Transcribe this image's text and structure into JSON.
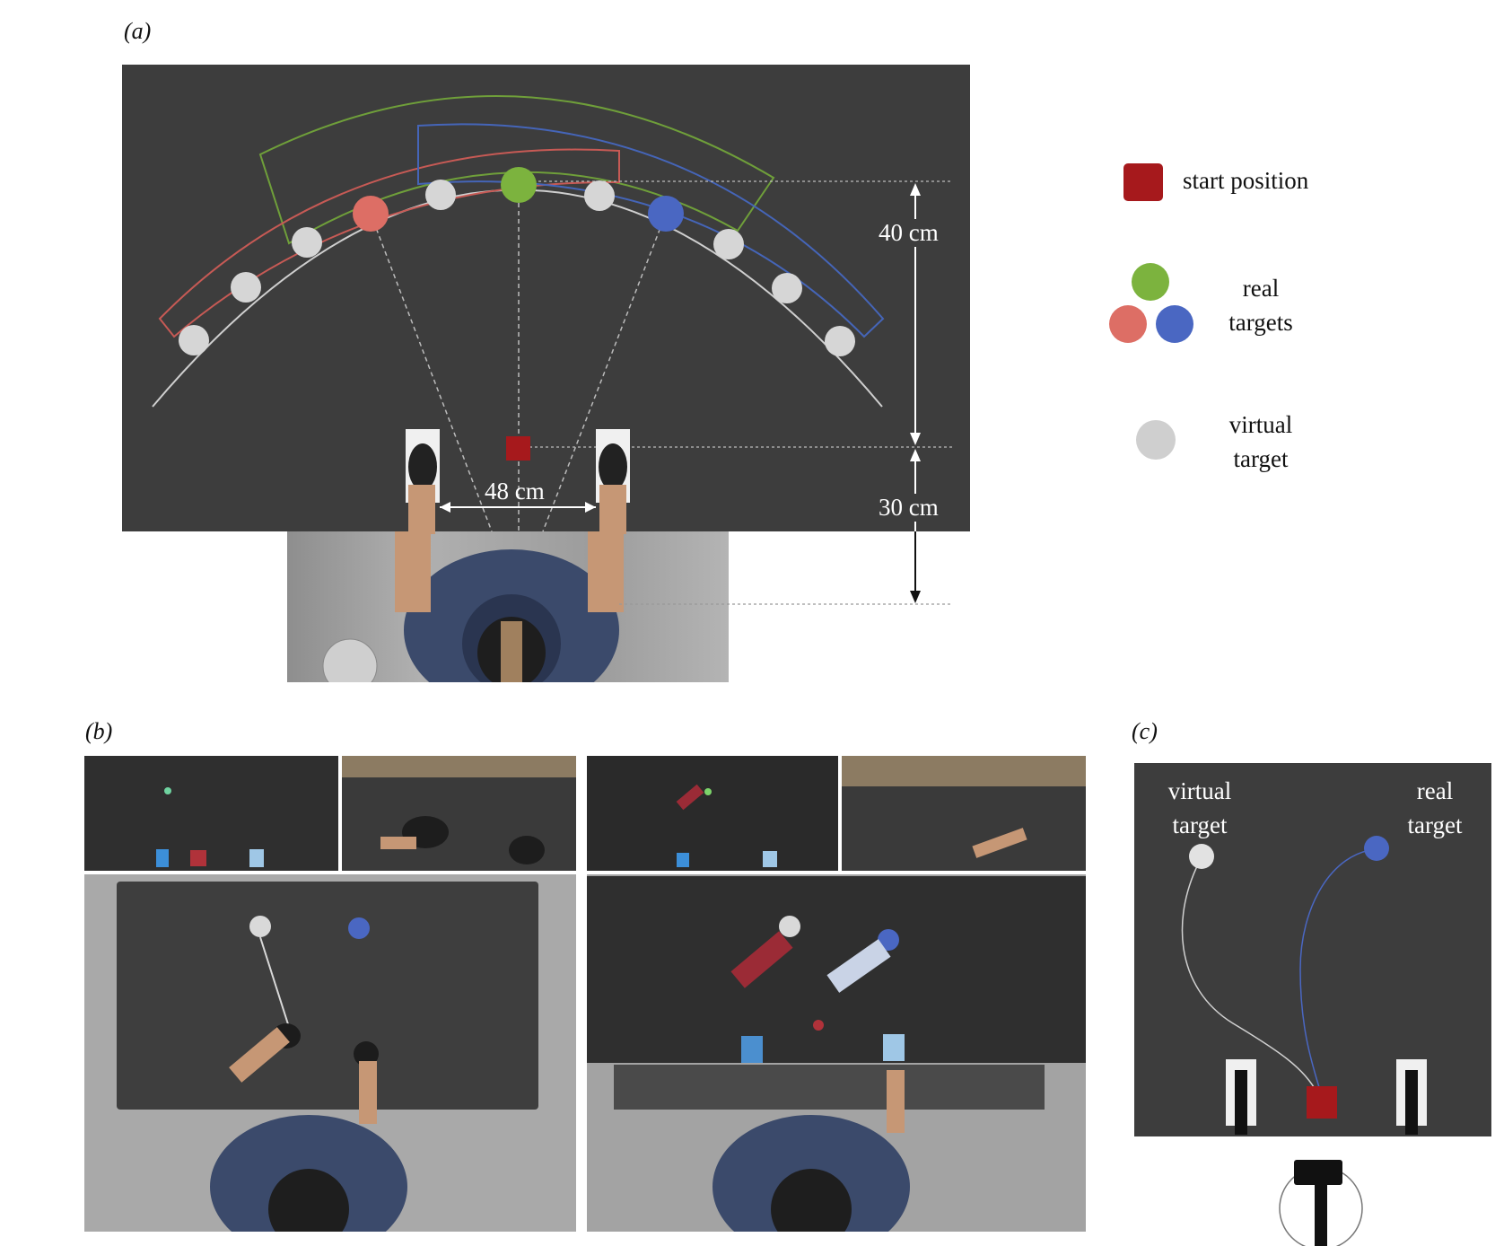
{
  "panels": {
    "a": {
      "label": "(a)"
    },
    "b": {
      "label": "(b)"
    },
    "c": {
      "label": "(c)"
    }
  },
  "panel_a": {
    "dim_40": "40 cm",
    "dim_30": "30 cm",
    "dim_48": "48 cm"
  },
  "legend": {
    "start": "start position",
    "real_line1": "real",
    "real_line2": "targets",
    "virtual_line1": "virtual",
    "virtual_line2": "target"
  },
  "panel_c": {
    "virtual_line1": "virtual",
    "virtual_line2": "target",
    "real_line1": "real",
    "real_line2": "target"
  },
  "colors": {
    "board": "#3d3d3d",
    "start_red": "#a6191c",
    "green_target": "#7cb33e",
    "red_target": "#dd6e65",
    "blue_target": "#4a67c2",
    "virtual_target": "#d6d6d6",
    "floor_gray": "#9a9a9a"
  }
}
